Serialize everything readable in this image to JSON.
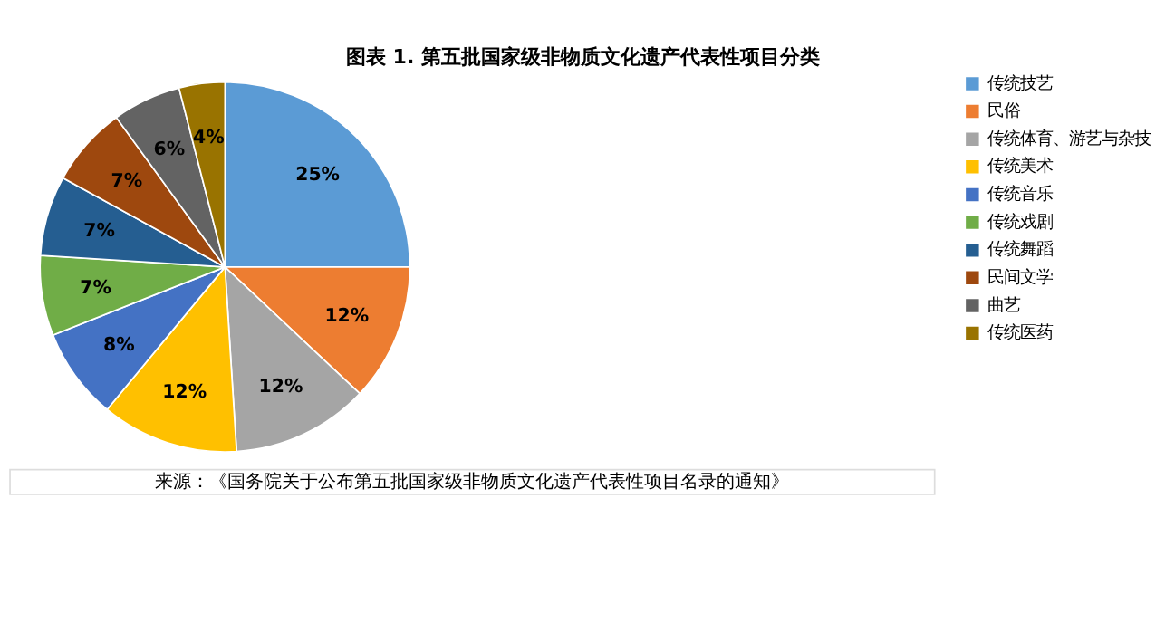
{
  "chart_data": {
    "type": "pie",
    "title": "图表 1. 第五批国家级非物质文化遗产代表性项目分类",
    "categories": [
      "传统技艺",
      "民俗",
      "传统体育、游艺与杂技",
      "传统美术",
      "传统音乐",
      "传统戏剧",
      "传统舞蹈",
      "民间文学",
      "曲艺",
      "传统医药"
    ],
    "values": [
      25,
      12,
      12,
      12,
      8,
      7,
      7,
      7,
      6,
      4
    ],
    "value_labels": [
      "25%",
      "12%",
      "12%",
      "12%",
      "8%",
      "7%",
      "7%",
      "7%",
      "6%",
      "4%"
    ],
    "colors": [
      "#5b9bd5",
      "#ed7d31",
      "#a5a5a5",
      "#ffc000",
      "#4472c4",
      "#70ad47",
      "#255e91",
      "#9e480e",
      "#636363",
      "#997300"
    ],
    "legend": "right",
    "annotations": [
      "来源：《国务院关于公布第五批国家级非物质文化遗产代表性项目名录的通知》"
    ]
  }
}
